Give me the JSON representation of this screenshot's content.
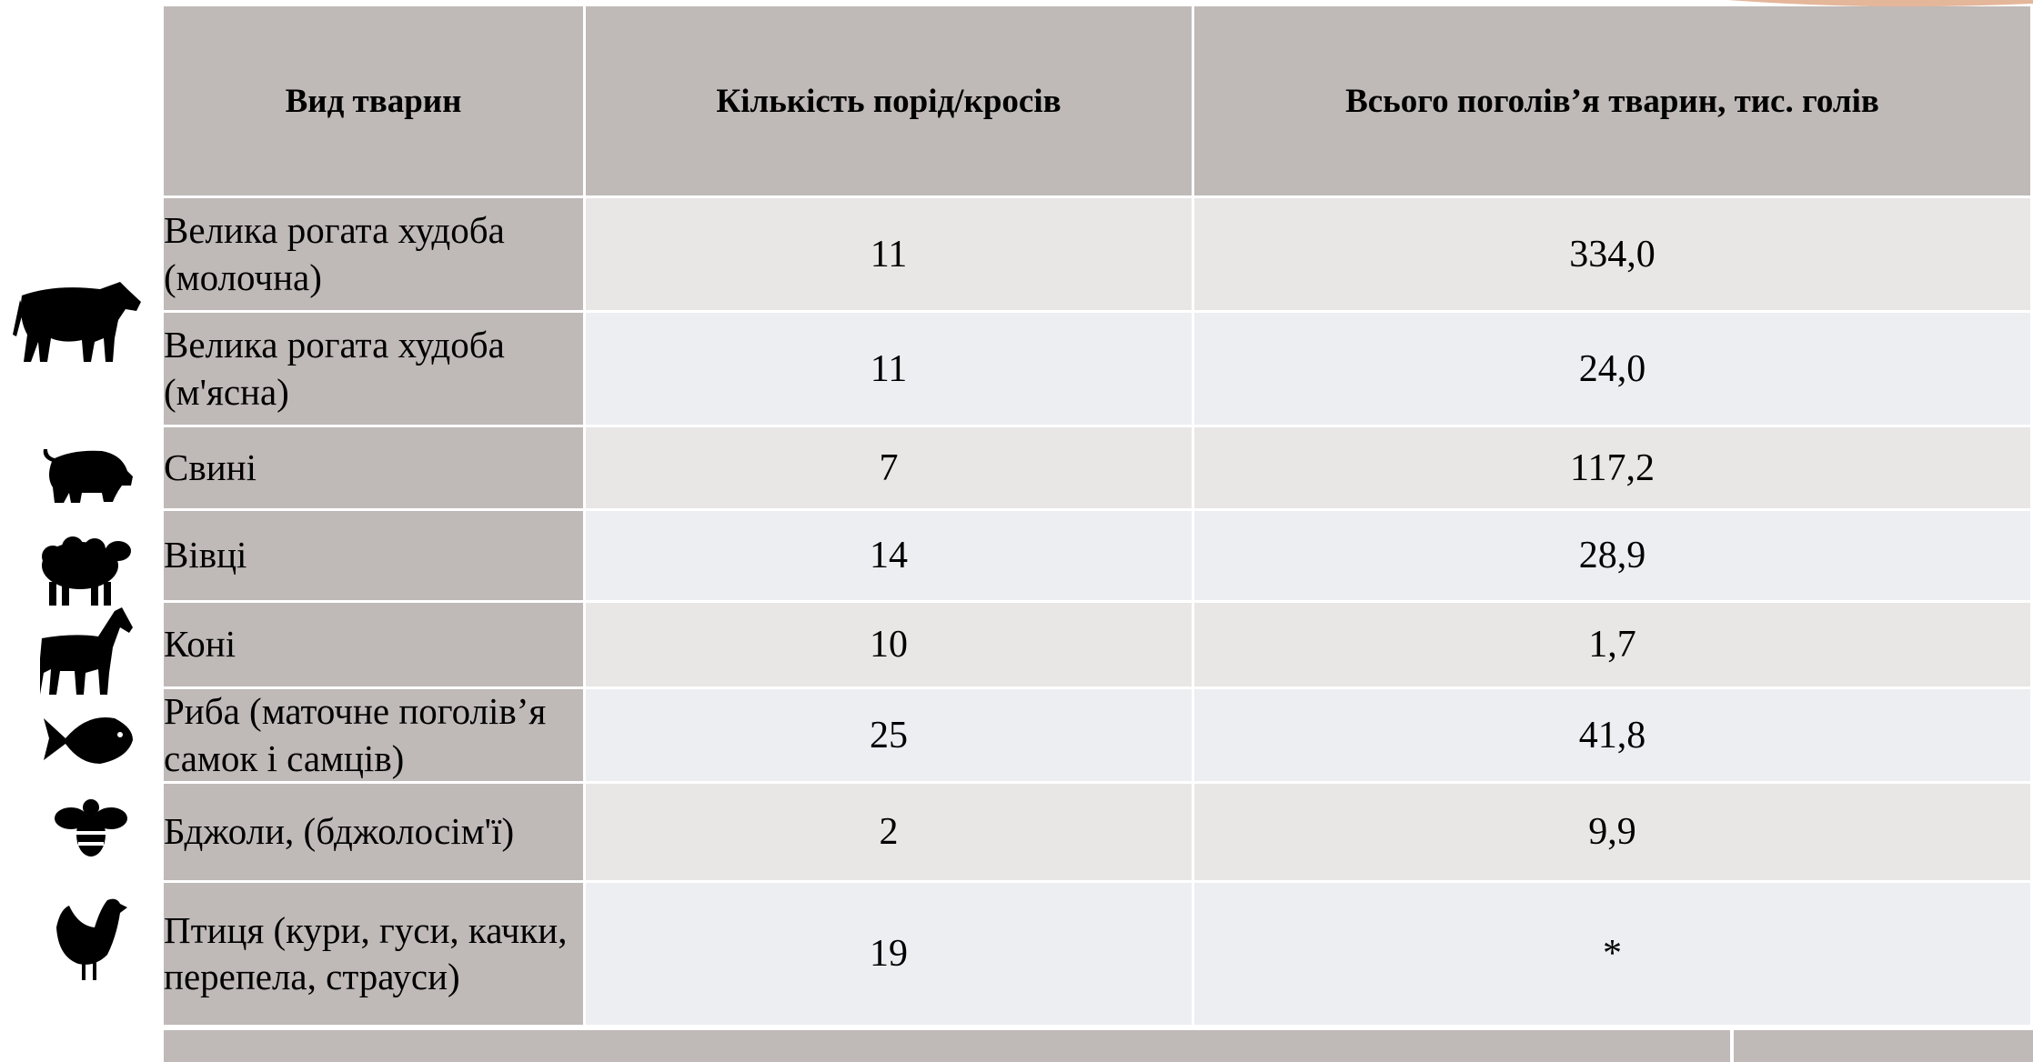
{
  "table": {
    "header": [
      "Вид тварин",
      "Кількість порід/кросів",
      "Всього поголів’я тварин, тис. голів"
    ],
    "rows": [
      [
        "Велика рогата худоба (молочна)",
        "11",
        "334,0"
      ],
      [
        "Велика рогата худоба (м'ясна)",
        "11",
        "24,0"
      ],
      [
        "Свині",
        "7",
        "117,2"
      ],
      [
        "Вівці",
        "14",
        "28,9"
      ],
      [
        "Коні",
        "10",
        "1,7"
      ],
      [
        "Риба (маточне поголів’я самок і самців)",
        "25",
        "41,8"
      ],
      [
        "Бджоли, (бджолосім'ї)",
        "2",
        "9,9"
      ],
      [
        "Птиця (кури, гуси, качки, перепела, страуси)",
        "19",
        "*"
      ]
    ]
  }
}
